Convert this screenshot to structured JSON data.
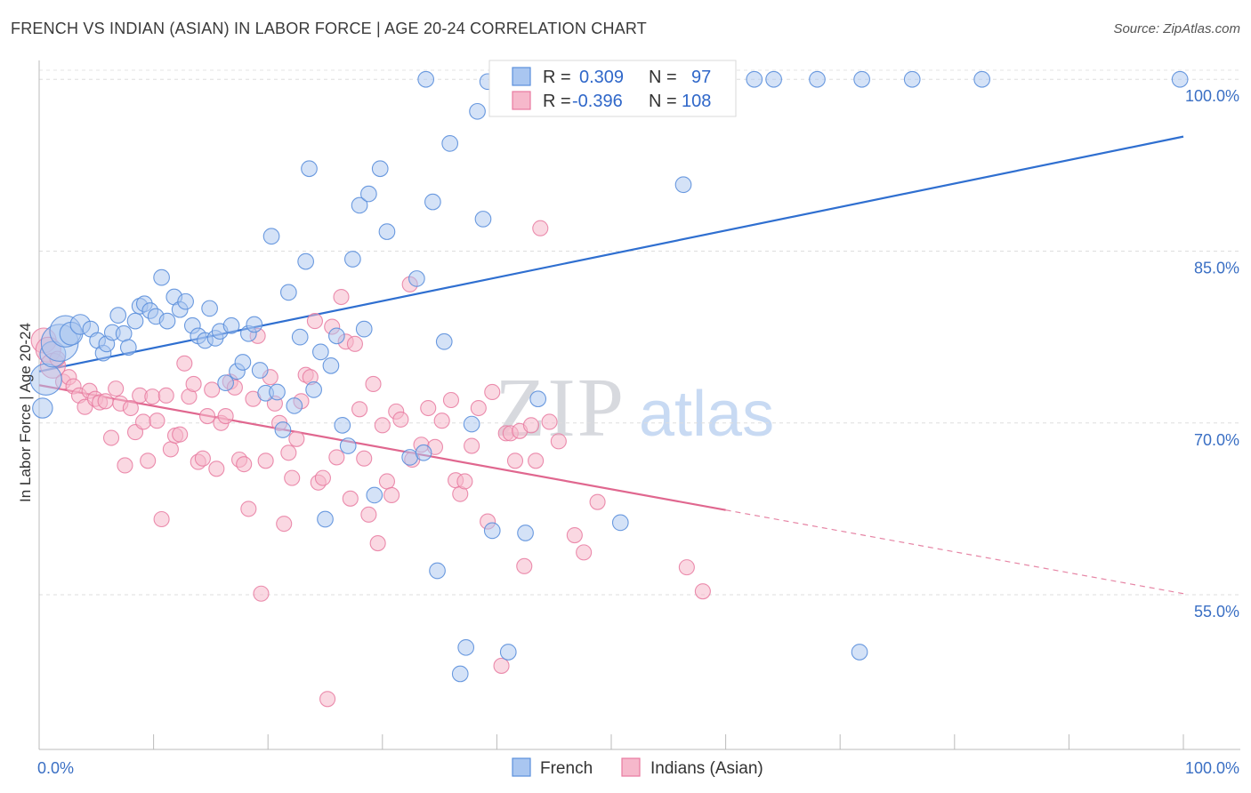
{
  "header": {
    "title": "FRENCH VS INDIAN (ASIAN) IN LABOR FORCE | AGE 20-24 CORRELATION CHART",
    "source": "Source: ZipAtlas.com"
  },
  "watermark": {
    "zip": "ZIP",
    "atlas": "atlas"
  },
  "legend": {
    "rows": [
      {
        "r_label": "R =",
        "r_value": "0.309",
        "n_label": "N =",
        "n_value": "97",
        "color": "#a9c6f0"
      },
      {
        "r_label": "R =",
        "r_value": "-0.396",
        "n_label": "N =",
        "n_value": "108",
        "color": "#f6b8cb"
      }
    ]
  },
  "bottom_legend": {
    "french": "French",
    "indians": "Indians (Asian)"
  },
  "chart_data": {
    "type": "scatter",
    "title": "FRENCH VS INDIAN (ASIAN) IN LABOR FORCE | AGE 20-24 CORRELATION CHART",
    "xlabel": "",
    "ylabel": "In Labor Force | Age 20-24",
    "x_ticks": [
      "0.0%",
      "100.0%"
    ],
    "y_ticks": [
      "100.0%",
      "85.0%",
      "70.0%",
      "55.0%"
    ],
    "xlim": [
      0,
      100
    ],
    "ylim": [
      41.5,
      102.5
    ],
    "y_gridlines": [
      100,
      85,
      70,
      55
    ],
    "colors": {
      "french": "#5b8fdc",
      "french_fill": "#a9c6f0",
      "french_line": "#2f6fd0",
      "indians": "#e87aa0",
      "indians_fill": "#f6b8cb",
      "indians_line": "#e0678f"
    },
    "series": [
      {
        "name": "French",
        "trend": {
          "x0": 0,
          "y0": 74.5,
          "x1": 100,
          "y1": 95.0
        },
        "points": [
          [
            0.3,
            71.3
          ],
          [
            0.6,
            73.8
          ],
          [
            1.2,
            76.0
          ],
          [
            1.8,
            77.0
          ],
          [
            2.3,
            78.0
          ],
          [
            2.8,
            77.8
          ],
          [
            3.6,
            78.6
          ],
          [
            4.5,
            78.2
          ],
          [
            5.1,
            77.2
          ],
          [
            5.6,
            76.1
          ],
          [
            5.9,
            76.9
          ],
          [
            6.4,
            77.9
          ],
          [
            6.9,
            79.4
          ],
          [
            7.4,
            77.8
          ],
          [
            7.8,
            76.6
          ],
          [
            8.4,
            78.9
          ],
          [
            8.8,
            80.2
          ],
          [
            9.2,
            80.4
          ],
          [
            9.7,
            79.8
          ],
          [
            10.2,
            79.3
          ],
          [
            10.7,
            82.7
          ],
          [
            11.2,
            78.9
          ],
          [
            11.8,
            81.0
          ],
          [
            12.3,
            79.9
          ],
          [
            12.8,
            80.6
          ],
          [
            13.4,
            78.5
          ],
          [
            13.9,
            77.6
          ],
          [
            14.5,
            77.2
          ],
          [
            14.9,
            80.0
          ],
          [
            15.4,
            77.4
          ],
          [
            15.8,
            78.0
          ],
          [
            16.3,
            73.5
          ],
          [
            16.8,
            78.5
          ],
          [
            17.3,
            74.5
          ],
          [
            17.8,
            75.3
          ],
          [
            18.3,
            77.8
          ],
          [
            18.8,
            78.6
          ],
          [
            19.3,
            74.6
          ],
          [
            19.8,
            72.6
          ],
          [
            20.3,
            86.3
          ],
          [
            20.8,
            72.7
          ],
          [
            21.3,
            69.4
          ],
          [
            21.8,
            81.4
          ],
          [
            22.3,
            71.5
          ],
          [
            22.8,
            77.5
          ],
          [
            23.3,
            84.1
          ],
          [
            23.6,
            92.2
          ],
          [
            24.0,
            72.9
          ],
          [
            24.6,
            76.2
          ],
          [
            25.0,
            61.6
          ],
          [
            25.5,
            75.0
          ],
          [
            26.0,
            77.6
          ],
          [
            26.5,
            69.8
          ],
          [
            27.0,
            68.0
          ],
          [
            27.4,
            84.3
          ],
          [
            28.0,
            89.0
          ],
          [
            28.4,
            78.2
          ],
          [
            28.8,
            90.0
          ],
          [
            29.3,
            63.7
          ],
          [
            29.8,
            92.2
          ],
          [
            30.4,
            86.7
          ],
          [
            32.4,
            67.0
          ],
          [
            33.0,
            82.6
          ],
          [
            33.6,
            67.4
          ],
          [
            33.8,
            100.0
          ],
          [
            34.4,
            89.3
          ],
          [
            34.8,
            57.1
          ],
          [
            35.4,
            77.1
          ],
          [
            35.9,
            94.4
          ],
          [
            36.8,
            48.1
          ],
          [
            37.3,
            50.4
          ],
          [
            37.8,
            69.9
          ],
          [
            38.3,
            97.2
          ],
          [
            38.8,
            87.8
          ],
          [
            39.2,
            99.8
          ],
          [
            39.6,
            60.6
          ],
          [
            40.5,
            100.0
          ],
          [
            41.0,
            50.0
          ],
          [
            42.0,
            99.8
          ],
          [
            42.5,
            60.4
          ],
          [
            43.6,
            72.1
          ],
          [
            44.6,
            99.6
          ],
          [
            45.3,
            100.0
          ],
          [
            48.6,
            100.0
          ],
          [
            50.4,
            100.0
          ],
          [
            50.8,
            61.3
          ],
          [
            56.3,
            90.8
          ],
          [
            58.3,
            100.0
          ],
          [
            60.0,
            100.0
          ],
          [
            62.5,
            100.0
          ],
          [
            64.2,
            100.0
          ],
          [
            68.0,
            100.0
          ],
          [
            71.7,
            50.0
          ],
          [
            71.9,
            100.0
          ],
          [
            76.3,
            100.0
          ],
          [
            82.4,
            100.0
          ],
          [
            99.7,
            100.0
          ]
        ],
        "sizes": [
          14,
          22,
          18,
          26,
          22,
          16,
          14,
          11,
          11,
          11,
          11,
          11,
          11,
          11,
          11,
          11,
          11,
          11,
          11,
          11,
          11,
          11,
          11,
          11,
          11,
          11,
          11,
          11,
          11,
          11,
          11,
          11,
          11,
          11,
          11,
          11,
          11,
          11,
          11,
          11,
          11,
          11,
          11,
          11,
          11,
          11,
          11,
          11,
          11,
          11,
          11,
          11,
          11,
          11,
          11,
          11,
          11,
          11,
          11,
          11,
          11,
          11,
          11,
          11,
          11,
          11,
          11,
          11,
          11,
          11,
          11,
          11,
          11,
          11,
          11,
          11,
          11,
          11,
          11,
          11,
          11,
          11,
          11,
          11,
          11,
          11,
          11,
          11,
          11,
          11,
          11,
          11,
          11,
          11,
          11,
          11,
          11
        ]
      },
      {
        "name": "Indians (Asian)",
        "trend": {
          "x0": 0,
          "y0": 73.3,
          "x1": 60,
          "y1": 62.4,
          "dash_x1": 100,
          "dash_y1": 55.1
        },
        "points": [
          [
            0.4,
            77.2
          ],
          [
            0.8,
            76.4
          ],
          [
            1.2,
            75.0
          ],
          [
            1.6,
            75.6
          ],
          [
            2.1,
            73.6
          ],
          [
            2.6,
            74.0
          ],
          [
            3.0,
            73.2
          ],
          [
            3.5,
            72.4
          ],
          [
            4.0,
            71.4
          ],
          [
            4.4,
            72.8
          ],
          [
            4.9,
            72.1
          ],
          [
            5.3,
            71.8
          ],
          [
            5.8,
            71.9
          ],
          [
            6.3,
            68.7
          ],
          [
            6.7,
            73.0
          ],
          [
            7.1,
            71.7
          ],
          [
            7.5,
            66.3
          ],
          [
            8.0,
            71.3
          ],
          [
            8.4,
            69.2
          ],
          [
            8.8,
            72.4
          ],
          [
            9.1,
            70.1
          ],
          [
            9.5,
            66.7
          ],
          [
            9.9,
            72.3
          ],
          [
            10.3,
            70.2
          ],
          [
            10.7,
            61.6
          ],
          [
            11.1,
            72.4
          ],
          [
            11.5,
            67.7
          ],
          [
            11.9,
            68.9
          ],
          [
            12.3,
            69.0
          ],
          [
            12.7,
            75.2
          ],
          [
            13.1,
            72.3
          ],
          [
            13.5,
            73.4
          ],
          [
            13.9,
            66.6
          ],
          [
            14.3,
            66.9
          ],
          [
            14.7,
            70.6
          ],
          [
            15.1,
            72.9
          ],
          [
            15.5,
            66.0
          ],
          [
            15.9,
            70.0
          ],
          [
            16.3,
            70.6
          ],
          [
            16.7,
            73.6
          ],
          [
            17.1,
            73.1
          ],
          [
            17.5,
            66.8
          ],
          [
            17.9,
            66.4
          ],
          [
            18.3,
            62.5
          ],
          [
            18.7,
            72.1
          ],
          [
            19.1,
            77.6
          ],
          [
            19.4,
            55.1
          ],
          [
            19.8,
            66.7
          ],
          [
            20.2,
            74.0
          ],
          [
            20.6,
            71.7
          ],
          [
            21.0,
            70.0
          ],
          [
            21.4,
            61.2
          ],
          [
            21.8,
            67.4
          ],
          [
            22.1,
            65.2
          ],
          [
            22.5,
            68.6
          ],
          [
            22.9,
            71.9
          ],
          [
            23.3,
            74.2
          ],
          [
            23.7,
            74.0
          ],
          [
            24.1,
            78.9
          ],
          [
            24.4,
            64.8
          ],
          [
            24.8,
            65.2
          ],
          [
            25.2,
            45.9
          ],
          [
            25.6,
            78.4
          ],
          [
            26.0,
            67.0
          ],
          [
            26.4,
            81.0
          ],
          [
            26.8,
            77.1
          ],
          [
            27.2,
            63.4
          ],
          [
            27.6,
            76.9
          ],
          [
            28.0,
            71.2
          ],
          [
            28.4,
            66.9
          ],
          [
            28.8,
            62.0
          ],
          [
            29.2,
            73.4
          ],
          [
            29.6,
            59.5
          ],
          [
            30.0,
            69.8
          ],
          [
            30.4,
            64.9
          ],
          [
            30.8,
            63.7
          ],
          [
            31.2,
            71.0
          ],
          [
            31.6,
            70.3
          ],
          [
            32.4,
            82.1
          ],
          [
            32.6,
            66.8
          ],
          [
            33.4,
            68.1
          ],
          [
            34.0,
            71.3
          ],
          [
            34.6,
            67.9
          ],
          [
            35.2,
            70.2
          ],
          [
            36.0,
            72.0
          ],
          [
            36.4,
            65.0
          ],
          [
            36.8,
            63.8
          ],
          [
            37.2,
            64.9
          ],
          [
            37.8,
            68.0
          ],
          [
            38.4,
            71.3
          ],
          [
            39.2,
            61.4
          ],
          [
            39.6,
            72.7
          ],
          [
            40.4,
            48.8
          ],
          [
            40.8,
            69.1
          ],
          [
            41.2,
            69.1
          ],
          [
            41.6,
            66.7
          ],
          [
            42.0,
            69.3
          ],
          [
            42.4,
            57.5
          ],
          [
            43.0,
            69.8
          ],
          [
            43.4,
            66.7
          ],
          [
            43.8,
            87.0
          ],
          [
            44.6,
            70.1
          ],
          [
            45.4,
            68.4
          ],
          [
            46.8,
            60.2
          ],
          [
            47.6,
            58.7
          ],
          [
            48.8,
            63.1
          ],
          [
            56.6,
            57.4
          ],
          [
            58.0,
            55.3
          ]
        ]
      }
    ]
  }
}
